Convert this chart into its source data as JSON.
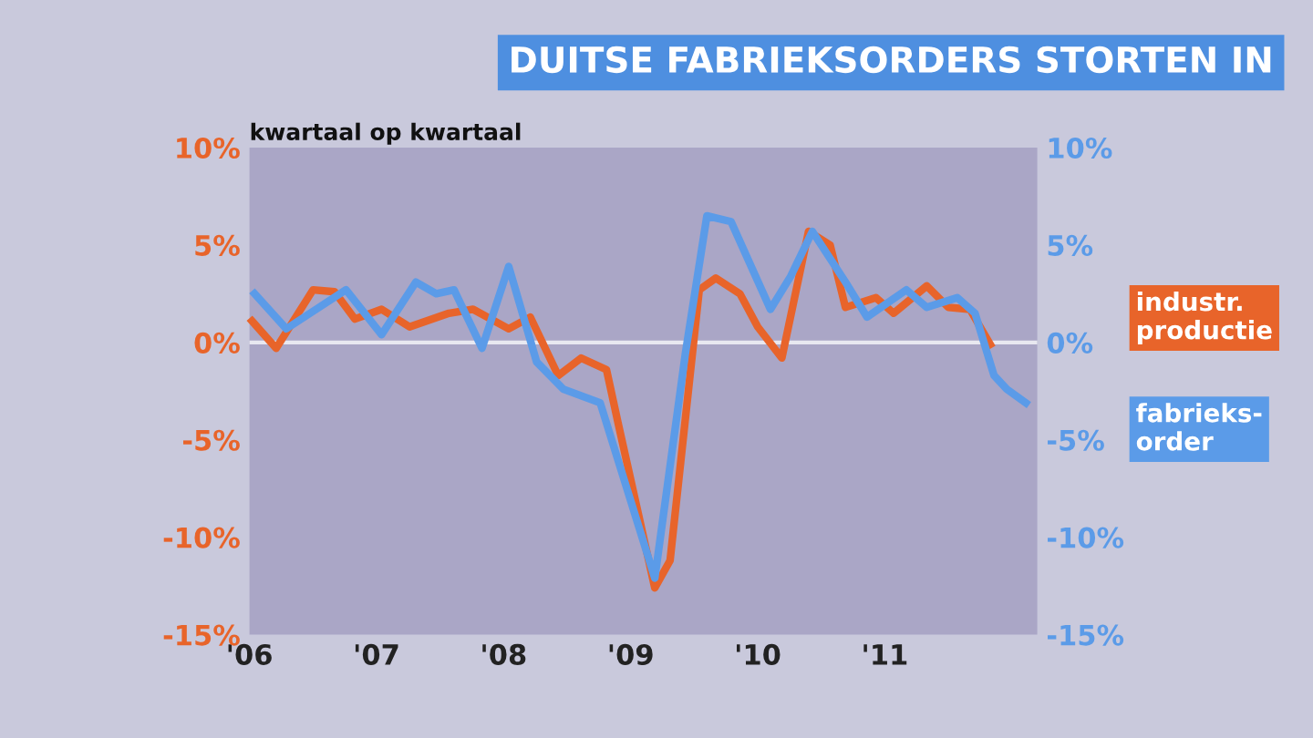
{
  "chart_data": {
    "type": "line",
    "title": "DUITSE FABRIEKSORDERS STORTEN IN",
    "subtitle": "kwartaal op kwartaal",
    "xlim": [
      2006,
      2012.2
    ],
    "xticks": [
      {
        "value": 2006,
        "label": "'06"
      },
      {
        "value": 2007,
        "label": "'07"
      },
      {
        "value": 2008,
        "label": "'08"
      },
      {
        "value": 2009,
        "label": "'09"
      },
      {
        "value": 2010,
        "label": "'10"
      },
      {
        "value": 2011,
        "label": "'11"
      }
    ],
    "ylim": [
      -15,
      10
    ],
    "yticks": [
      {
        "value": -15,
        "label": "-15%"
      },
      {
        "value": -10,
        "label": "-10%"
      },
      {
        "value": -5,
        "label": "-5%"
      },
      {
        "value": 0,
        "label": "0%"
      },
      {
        "value": 5,
        "label": "5%"
      },
      {
        "value": 10,
        "label": "10%"
      }
    ],
    "y2lim": [
      -15,
      10
    ],
    "y2ticks": [
      {
        "value": -15,
        "label": "-15%"
      },
      {
        "value": -10,
        "label": "-10%"
      },
      {
        "value": -5,
        "label": "-5%"
      },
      {
        "value": 0,
        "label": "0%"
      },
      {
        "value": 5,
        "label": "5%"
      },
      {
        "value": 10,
        "label": "10%"
      }
    ],
    "ref_lines": [
      {
        "axis": "y",
        "value": 0,
        "color": "#e8e8f0"
      }
    ],
    "grid": false,
    "legend": false,
    "series": [
      {
        "name": "industr.\nproductie",
        "color": "#e8642a",
        "x": [
          2006.02,
          2006.21,
          2006.5,
          2006.67,
          2006.83,
          2007.04,
          2007.26,
          2007.57,
          2007.76,
          2008.04,
          2008.21,
          2008.43,
          2008.61,
          2008.81,
          2008.9,
          2009.19,
          2009.31,
          2009.54,
          2009.67,
          2009.86,
          2010.0,
          2010.19,
          2010.4,
          2010.57,
          2010.69,
          2010.93,
          2011.07,
          2011.33,
          2011.5,
          2011.67,
          2011.83
        ],
        "values": [
          1.1,
          -0.3,
          2.7,
          2.6,
          1.2,
          1.7,
          0.8,
          1.5,
          1.7,
          0.7,
          1.3,
          -1.7,
          -0.8,
          -1.4,
          -4.1,
          -12.6,
          -11.2,
          2.7,
          3.3,
          2.5,
          0.8,
          -0.8,
          5.7,
          5.0,
          1.8,
          2.3,
          1.5,
          2.9,
          1.8,
          1.7,
          -0.1
        ]
      },
      {
        "name": "fabrieks-\norder",
        "color": "#5b9be8",
        "axis": "y2",
        "x": [
          2006.04,
          2006.29,
          2006.76,
          2007.04,
          2007.31,
          2007.47,
          2007.61,
          2007.83,
          2008.04,
          2008.26,
          2008.47,
          2008.76,
          2009.19,
          2009.43,
          2009.6,
          2009.79,
          2010.1,
          2010.26,
          2010.43,
          2010.69,
          2010.86,
          2011.17,
          2011.33,
          2011.57,
          2011.71,
          2011.86,
          2011.96,
          2012.11
        ],
        "values": [
          2.5,
          0.7,
          2.7,
          0.4,
          3.1,
          2.5,
          2.7,
          -0.3,
          3.9,
          -1.0,
          -2.4,
          -3.1,
          -12.1,
          -0.6,
          6.5,
          6.2,
          1.7,
          3.4,
          5.7,
          3.1,
          1.3,
          2.7,
          1.8,
          2.3,
          1.5,
          -1.7,
          -2.4,
          -3.1
        ]
      }
    ]
  }
}
